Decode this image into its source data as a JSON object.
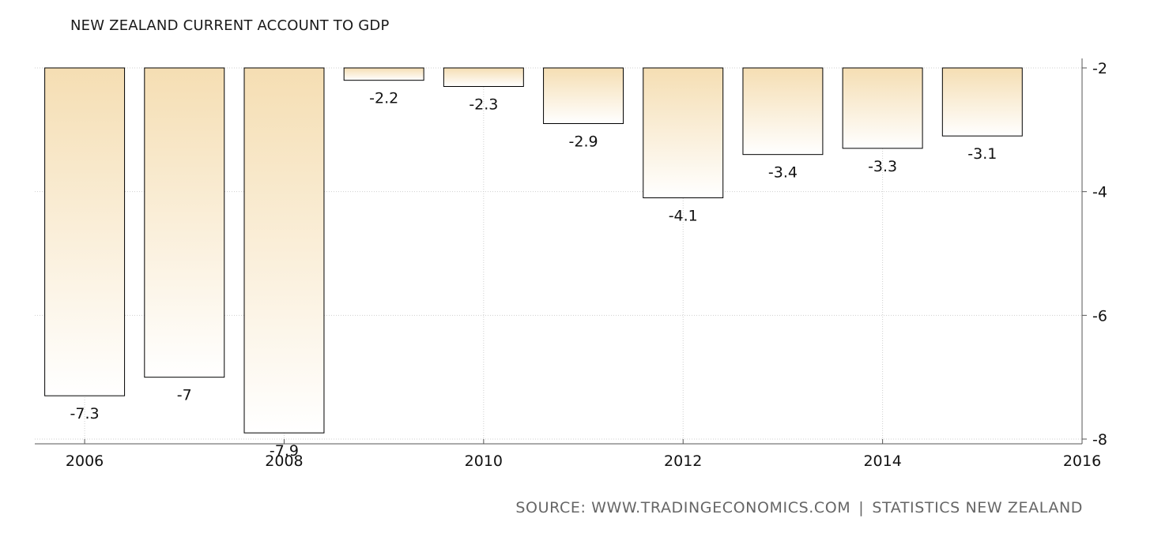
{
  "chart_data": {
    "type": "bar",
    "title": "NEW ZEALAND CURRENT ACCOUNT TO GDP",
    "x": [
      2006,
      2007,
      2008,
      2009,
      2010,
      2011,
      2012,
      2013,
      2014,
      2015
    ],
    "values": [
      -7.3,
      -7,
      -7.9,
      -2.2,
      -2.3,
      -2.9,
      -4.1,
      -3.4,
      -3.3,
      -3.1
    ],
    "value_labels": [
      "-7.3",
      "-7",
      "-7.9",
      "-2.2",
      "-2.3",
      "-2.9",
      "-4.1",
      "-3.4",
      "-3.3",
      "-3.1"
    ],
    "x_ticks": [
      "2006",
      "2008",
      "2010",
      "2012",
      "2014",
      "2016"
    ],
    "y_ticks": [
      "-2",
      "-4",
      "-6",
      "-8"
    ],
    "ylim": [
      -8,
      -2
    ],
    "xlim": [
      2005.5,
      2016
    ],
    "y_axis_position": "right",
    "grid": true,
    "bar_fill_top": "#f5deb3",
    "bar_fill_bottom": "#ffffff",
    "bar_stroke": "#000000"
  },
  "source": {
    "prefix": "SOURCE:",
    "site": "WWW.TRADINGECONOMICS.COM",
    "separator": "|",
    "agency": "STATISTICS NEW ZEALAND"
  }
}
